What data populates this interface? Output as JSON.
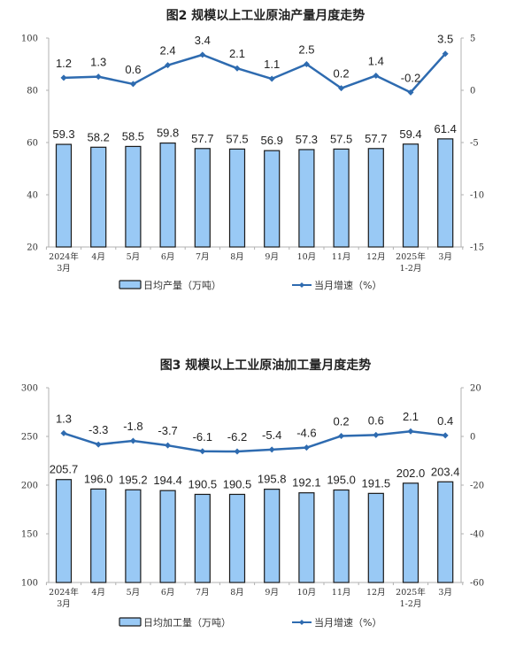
{
  "charts": [
    {
      "title": "图2  规模以上工业原油产量月度走势",
      "legend": {
        "bar": "日均产量（万吨）",
        "line": "当月增速（%）"
      },
      "left_ticks": [
        "100",
        "80",
        "60",
        "40",
        "20"
      ],
      "right_ticks": [
        "5",
        "0",
        "-5",
        "-10",
        "-15"
      ],
      "categories": [
        [
          "2024年",
          "3月"
        ],
        [
          "4月"
        ],
        [
          "5月"
        ],
        [
          "6月"
        ],
        [
          "7月"
        ],
        [
          "8月"
        ],
        [
          "9月"
        ],
        [
          "10月"
        ],
        [
          "11月"
        ],
        [
          "12月"
        ],
        [
          "2025年",
          "1-2月"
        ],
        [
          "3月"
        ]
      ],
      "bar_values": [
        "59.3",
        "58.2",
        "58.5",
        "59.8",
        "57.7",
        "57.5",
        "56.9",
        "57.3",
        "57.5",
        "57.7",
        "59.4",
        "61.4"
      ],
      "line_values": [
        "1.2",
        "1.3",
        "0.6",
        "2.4",
        "3.4",
        "2.1",
        "1.1",
        "2.5",
        "0.2",
        "1.4",
        "-0.2",
        "3.5"
      ]
    },
    {
      "title": "图3  规模以上工业原油加工量月度走势",
      "legend": {
        "bar": "日均加工量（万吨）",
        "line": "当月增速（%）"
      },
      "left_ticks": [
        "300",
        "250",
        "200",
        "150",
        "100"
      ],
      "right_ticks": [
        "20",
        "0",
        "-20",
        "-40",
        "-60"
      ],
      "categories": [
        [
          "2024年",
          "3月"
        ],
        [
          "4月"
        ],
        [
          "5月"
        ],
        [
          "6月"
        ],
        [
          "7月"
        ],
        [
          "8月"
        ],
        [
          "9月"
        ],
        [
          "10月"
        ],
        [
          "11月"
        ],
        [
          "12月"
        ],
        [
          "2025年",
          "1-2月"
        ],
        [
          "3月"
        ]
      ],
      "bar_values": [
        "205.7",
        "196.0",
        "195.2",
        "194.4",
        "190.5",
        "190.5",
        "195.8",
        "192.1",
        "195.0",
        "191.5",
        "202.0",
        "203.4"
      ],
      "line_values": [
        "1.3",
        "-3.3",
        "-1.8",
        "-3.7",
        "-6.1",
        "-6.2",
        "-5.4",
        "-4.6",
        "0.2",
        "0.6",
        "2.1",
        "0.4"
      ]
    }
  ],
  "colors": {
    "bar_fill": "#99c9f5",
    "bar_stroke": "#1a1a1a",
    "line": "#2e6bb0",
    "axis": "#b0b0b0"
  },
  "chart_data": [
    {
      "type": "bar+line",
      "title": "图2 规模以上工业原油产量月度走势",
      "categories": [
        "2024年3月",
        "4月",
        "5月",
        "6月",
        "7月",
        "8月",
        "9月",
        "10月",
        "11月",
        "12月",
        "2025年1-2月",
        "3月"
      ],
      "series": [
        {
          "name": "日均产量（万吨）",
          "type": "bar",
          "axis": "left",
          "values": [
            59.3,
            58.2,
            58.5,
            59.8,
            57.7,
            57.5,
            56.9,
            57.3,
            57.5,
            57.7,
            59.4,
            61.4
          ]
        },
        {
          "name": "当月增速（%）",
          "type": "line",
          "axis": "right",
          "values": [
            1.2,
            1.3,
            0.6,
            2.4,
            3.4,
            2.1,
            1.1,
            2.5,
            0.2,
            1.4,
            -0.2,
            3.5
          ]
        }
      ],
      "ylim_left": [
        20,
        100
      ],
      "ylim_right": [
        -15,
        5
      ],
      "legend_position": "bottom",
      "grid": false
    },
    {
      "type": "bar+line",
      "title": "图3 规模以上工业原油加工量月度走势",
      "categories": [
        "2024年3月",
        "4月",
        "5月",
        "6月",
        "7月",
        "8月",
        "9月",
        "10月",
        "11月",
        "12月",
        "2025年1-2月",
        "3月"
      ],
      "series": [
        {
          "name": "日均加工量（万吨）",
          "type": "bar",
          "axis": "left",
          "values": [
            205.7,
            196.0,
            195.2,
            194.4,
            190.5,
            190.5,
            195.8,
            192.1,
            195.0,
            191.5,
            202.0,
            203.4
          ]
        },
        {
          "name": "当月增速（%）",
          "type": "line",
          "axis": "right",
          "values": [
            1.3,
            -3.3,
            -1.8,
            -3.7,
            -6.1,
            -6.2,
            -5.4,
            -4.6,
            0.2,
            0.6,
            2.1,
            0.4
          ]
        }
      ],
      "ylim_left": [
        100,
        300
      ],
      "ylim_right": [
        -60,
        20
      ],
      "legend_position": "bottom",
      "grid": false
    }
  ]
}
